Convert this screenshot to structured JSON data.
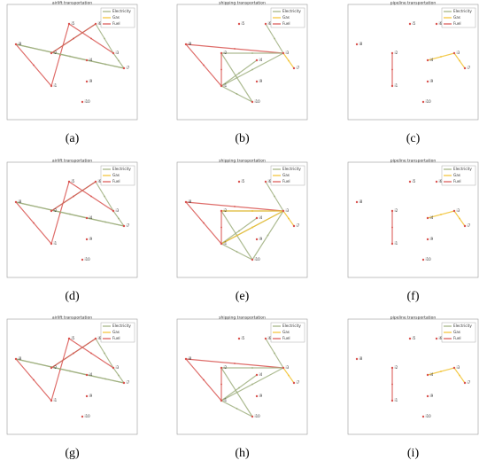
{
  "figure": {
    "panels": [
      {
        "title": "airlift transportation",
        "label": "(a)"
      },
      {
        "title": "shipping transportation",
        "label": "(b)"
      },
      {
        "title": "pipeline transportation",
        "label": "(c)"
      },
      {
        "title": "airlift transportation",
        "label": "(d)"
      },
      {
        "title": "shipping transportation",
        "label": "(e)"
      },
      {
        "title": "pipeline transportation",
        "label": "(f)"
      },
      {
        "title": "airlift transportation",
        "label": "(g)"
      },
      {
        "title": "shipping transportation",
        "label": "(h)"
      },
      {
        "title": "pipeline transportation",
        "label": "(i)"
      }
    ],
    "legend": [
      {
        "name": "Electricity",
        "color": "#9fb07f"
      },
      {
        "name": "Gas",
        "color": "#f2c230"
      },
      {
        "name": "Fuel",
        "color": "#d9534f"
      }
    ],
    "nodes": [
      "i1",
      "i2",
      "i3",
      "i4",
      "i5",
      "i6",
      "i7",
      "i8",
      "i9",
      "i10"
    ]
  }
}
